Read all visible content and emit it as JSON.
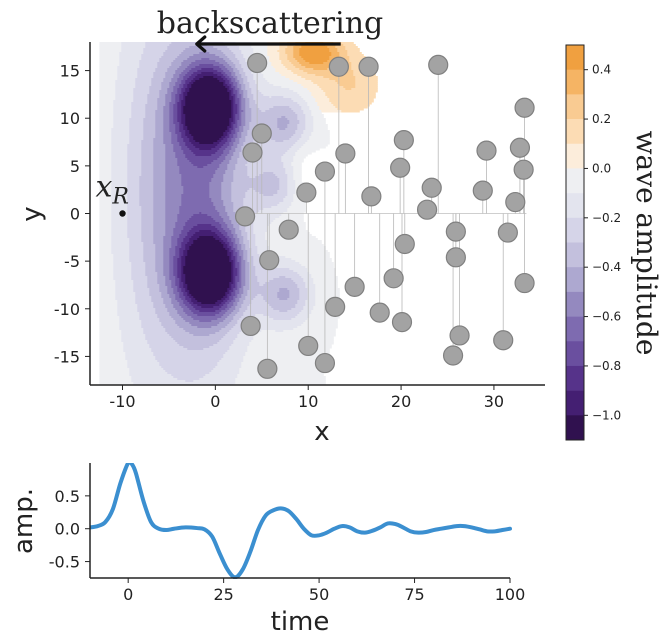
{
  "chart_data": [
    {
      "type": "heatmap",
      "title": "",
      "xlabel": "x",
      "ylabel": "y",
      "xlim": [
        -13.5,
        35.5
      ],
      "ylim": [
        -18,
        18
      ],
      "data_region": {
        "x": [
          -12.5,
          35.5
        ],
        "y": [
          -18,
          18
        ]
      },
      "x_ticks": [
        -10,
        0,
        10,
        20,
        30
      ],
      "x_tick_labels": [
        "-10",
        "0",
        "10",
        "20",
        "30"
      ],
      "y_ticks": [
        -15,
        -10,
        -5,
        0,
        5,
        10,
        15
      ],
      "y_tick_labels": [
        "-15",
        "-10",
        "-5",
        "0",
        "5",
        "10",
        "15"
      ],
      "annotation": "backscattering",
      "annotation_arrow": {
        "from_x": 13.5,
        "to_x": -2,
        "direction": "left"
      },
      "receiver": {
        "label_base": "x",
        "label_sub": "R",
        "x": -10,
        "y": 0
      },
      "field_blobs": [
        {
          "x": -0.5,
          "y": 11.2,
          "sx": 2.3,
          "sy": 3.0,
          "amp": -1.12
        },
        {
          "x": -0.5,
          "y": -6.3,
          "sx": 2.3,
          "sy": 3.0,
          "amp": -1.12
        },
        {
          "x": -1.5,
          "y": 2.4,
          "sx": 3.5,
          "sy": 13.0,
          "amp": -0.55
        },
        {
          "x": -7.0,
          "y": 2.4,
          "sx": 3.2,
          "sy": 16.0,
          "amp": -0.22
        },
        {
          "x": 7.5,
          "y": 9.5,
          "sx": 2.0,
          "sy": 2.2,
          "amp": -0.4
        },
        {
          "x": 7.5,
          "y": -8.5,
          "sx": 2.0,
          "sy": 2.2,
          "amp": -0.4
        },
        {
          "x": 6.5,
          "y": 3.0,
          "sx": 2.0,
          "sy": 2.0,
          "amp": -0.3
        },
        {
          "x": 10.5,
          "y": 17.0,
          "sx": 2.2,
          "sy": 1.6,
          "amp": 0.5
        },
        {
          "x": 14.5,
          "y": 13.5,
          "sx": 2.5,
          "sy": 2.5,
          "amp": 0.2
        },
        {
          "x": 9.5,
          "y": 4.0,
          "sx": 1.5,
          "sy": 2.5,
          "amp": 0.12
        },
        {
          "x": 22.0,
          "y": -5.0,
          "sx": 4.0,
          "sy": 5.0,
          "amp": 0.08
        },
        {
          "x": 28.0,
          "y": 10.0,
          "sx": 3.0,
          "sy": 3.0,
          "amp": 0.06
        }
      ],
      "scatterers": [
        [
          4.5,
          15.8
        ],
        [
          13.3,
          15.4
        ],
        [
          16.5,
          15.4
        ],
        [
          24.0,
          15.6
        ],
        [
          5.0,
          8.4
        ],
        [
          4.0,
          6.4
        ],
        [
          20.3,
          7.7
        ],
        [
          33.3,
          11.1
        ],
        [
          29.2,
          6.6
        ],
        [
          32.8,
          6.9
        ],
        [
          14.0,
          6.3
        ],
        [
          11.8,
          4.4
        ],
        [
          9.8,
          2.2
        ],
        [
          16.8,
          1.8
        ],
        [
          23.3,
          2.7
        ],
        [
          19.9,
          4.8
        ],
        [
          28.8,
          2.4
        ],
        [
          33.2,
          4.6
        ],
        [
          32.3,
          1.2
        ],
        [
          3.2,
          -0.3
        ],
        [
          7.9,
          -1.7
        ],
        [
          22.8,
          0.4
        ],
        [
          25.9,
          -1.9
        ],
        [
          31.5,
          -2.0
        ],
        [
          20.4,
          -3.2
        ],
        [
          5.8,
          -4.9
        ],
        [
          25.9,
          -4.6
        ],
        [
          19.2,
          -6.8
        ],
        [
          15.0,
          -7.7
        ],
        [
          12.9,
          -9.8
        ],
        [
          17.7,
          -10.4
        ],
        [
          3.8,
          -11.8
        ],
        [
          20.1,
          -11.4
        ],
        [
          26.3,
          -12.8
        ],
        [
          33.3,
          -7.3
        ],
        [
          10.0,
          -13.9
        ],
        [
          11.8,
          -15.7
        ],
        [
          25.6,
          -14.9
        ],
        [
          31.0,
          -13.3
        ],
        [
          5.6,
          -16.3
        ]
      ],
      "colorbar": {
        "label": "wave amplitude",
        "range": [
          -1.1,
          0.5
        ],
        "ticks": [
          0.4,
          0.2,
          0.0,
          -0.2,
          -0.4,
          -0.6,
          -0.8,
          -1.0
        ],
        "tick_labels": [
          "0.4",
          "0.2",
          "0.0",
          "−0.2",
          "−0.4",
          "−0.6",
          "−0.8",
          "−1.0"
        ],
        "levels": [
          {
            "from": 0.4,
            "to": 0.5,
            "color": "#f0a040"
          },
          {
            "from": 0.3,
            "to": 0.4,
            "color": "#f5b464"
          },
          {
            "from": 0.2,
            "to": 0.3,
            "color": "#f9cb92"
          },
          {
            "from": 0.1,
            "to": 0.2,
            "color": "#fcdcb4"
          },
          {
            "from": 0.0,
            "to": 0.1,
            "color": "#fceddb"
          },
          {
            "from": -0.1,
            "to": 0.0,
            "color": "#eeeff2"
          },
          {
            "from": -0.2,
            "to": -0.1,
            "color": "#e3e4ee"
          },
          {
            "from": -0.3,
            "to": -0.2,
            "color": "#d5d4e8"
          },
          {
            "from": -0.4,
            "to": -0.3,
            "color": "#c3c0dd"
          },
          {
            "from": -0.5,
            "to": -0.4,
            "color": "#ada8d0"
          },
          {
            "from": -0.6,
            "to": -0.5,
            "color": "#9489bf"
          },
          {
            "from": -0.7,
            "to": -0.6,
            "color": "#7e6bb0"
          },
          {
            "from": -0.8,
            "to": -0.7,
            "color": "#6a4f9f"
          },
          {
            "from": -0.9,
            "to": -0.8,
            "color": "#56338a"
          },
          {
            "from": -1.0,
            "to": -0.9,
            "color": "#441f72"
          },
          {
            "from": -1.1,
            "to": -1.0,
            "color": "#30114f"
          }
        ]
      }
    },
    {
      "type": "line",
      "title": "",
      "xlabel": "time",
      "ylabel": "amp.",
      "xlim": [
        -10,
        100
      ],
      "ylim": [
        -0.75,
        1.0
      ],
      "x_ticks": [
        0,
        25,
        50,
        75,
        100
      ],
      "x_tick_labels": [
        "0",
        "25",
        "50",
        "75",
        "100"
      ],
      "y_ticks": [
        0.5,
        0.0,
        -0.5
      ],
      "y_tick_labels": [
        "0.5",
        "0.0",
        "-0.5"
      ],
      "color": "#3b8fd0",
      "series": [
        {
          "x": [
            -10,
            -8,
            -6,
            -4,
            -2,
            0,
            1,
            2,
            4,
            6,
            8,
            10,
            12,
            15,
            18,
            20,
            22,
            24,
            26,
            28,
            30,
            32,
            34,
            36,
            38,
            40,
            42,
            44,
            46,
            48,
            50,
            52,
            54,
            56,
            58,
            60,
            62,
            64,
            66,
            68,
            70,
            72,
            74,
            76,
            78,
            80,
            82,
            84,
            86,
            88,
            90,
            92,
            94,
            96,
            98,
            100
          ],
          "y": [
            0.02,
            0.04,
            0.1,
            0.3,
            0.7,
            1.0,
            0.98,
            0.85,
            0.42,
            0.1,
            0.0,
            -0.02,
            0.0,
            0.02,
            0.01,
            -0.01,
            -0.12,
            -0.38,
            -0.62,
            -0.74,
            -0.62,
            -0.35,
            -0.02,
            0.2,
            0.28,
            0.31,
            0.27,
            0.15,
            0.0,
            -0.1,
            -0.1,
            -0.06,
            0.0,
            0.04,
            0.02,
            -0.04,
            -0.06,
            -0.03,
            0.02,
            0.08,
            0.07,
            0.02,
            -0.04,
            -0.06,
            -0.05,
            -0.02,
            0.0,
            0.02,
            0.04,
            0.04,
            0.02,
            -0.01,
            -0.04,
            -0.04,
            -0.02,
            0.0
          ]
        }
      ]
    }
  ]
}
